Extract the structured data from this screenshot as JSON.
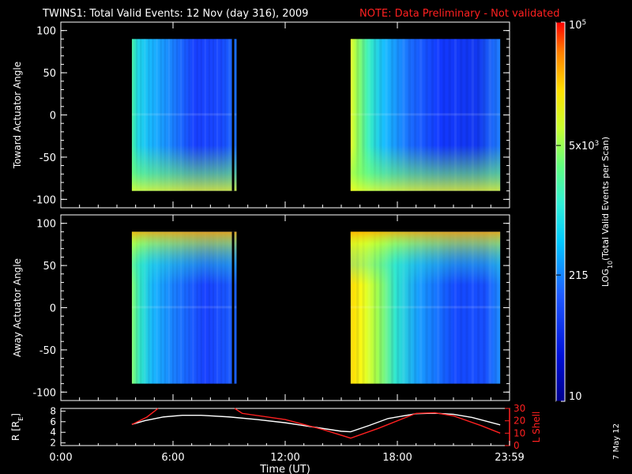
{
  "title": "TWINS1: Total Valid Events: 12 Nov (day 316), 2009",
  "note": "NOTE: Data Preliminary - Not validated",
  "colors": {
    "background": "#000000",
    "axes": "#ffffff",
    "note": "#ff2020",
    "lshell": "#ff2020",
    "radius": "#ffffff"
  },
  "chart_data": [
    {
      "type": "heatmap",
      "ylabel": "Toward Actuator Angle",
      "ylim": [
        -110,
        110
      ],
      "yticks": [
        100,
        50,
        0,
        -50,
        -100
      ],
      "xlim": [
        0,
        24
      ],
      "blocks": [
        {
          "t_start": 3.8,
          "t_end": 9.4,
          "angle_min": -90,
          "angle_max": 90
        },
        {
          "t_start": 15.5,
          "t_end": 23.5,
          "angle_min": -90,
          "angle_max": 90
        }
      ],
      "gaps": [
        {
          "t_start": 9.15,
          "t_end": 9.25
        }
      ]
    },
    {
      "type": "heatmap",
      "ylabel": "Away Actuator Angle",
      "ylim": [
        -110,
        110
      ],
      "yticks": [
        100,
        50,
        0,
        -50,
        -100
      ],
      "xlim": [
        0,
        24
      ],
      "blocks": [
        {
          "t_start": 3.8,
          "t_end": 9.4,
          "angle_min": -90,
          "angle_max": 90
        },
        {
          "t_start": 15.5,
          "t_end": 23.5,
          "angle_min": -90,
          "angle_max": 90
        }
      ],
      "gaps": [
        {
          "t_start": 9.15,
          "t_end": 9.25
        }
      ]
    },
    {
      "type": "line",
      "xlabel": "Time (UT)",
      "xticks": [
        "0:00",
        "6:00",
        "12:00",
        "18:00",
        "23:59"
      ],
      "xtick_values": [
        0,
        6,
        12,
        18,
        24
      ],
      "left_axis": {
        "label": "R [R",
        "label_sub": "E",
        "label_end": "]",
        "ylim": [
          1.5,
          8.5
        ],
        "ticks": [
          8,
          6,
          4,
          2
        ]
      },
      "right_axis": {
        "label": "L Shell",
        "ylim": [
          0,
          30
        ],
        "ticks": [
          30,
          20,
          10,
          0
        ],
        "tick_labels": [
          "30",
          "20",
          "10",
          "0"
        ]
      },
      "series": [
        {
          "axis": "left",
          "points": [
            [
              3.8,
              5.5
            ],
            [
              4.5,
              6.2
            ],
            [
              5.5,
              6.9
            ],
            [
              6.5,
              7.2
            ],
            [
              7.5,
              7.2
            ],
            [
              9,
              6.9
            ],
            [
              10.5,
              6.4
            ],
            [
              12,
              5.8
            ],
            [
              13.5,
              5.0
            ],
            [
              15,
              4.2
            ],
            [
              15.5,
              4.1
            ],
            [
              16.5,
              5.3
            ],
            [
              17.5,
              6.6
            ],
            [
              19,
              7.5
            ],
            [
              20,
              7.6
            ],
            [
              21,
              7.4
            ],
            [
              22,
              6.8
            ],
            [
              23.5,
              5.4
            ]
          ]
        },
        {
          "axis": "right",
          "segments": [
            [
              [
                3.8,
                17
              ],
              [
                4.6,
                23
              ],
              [
                5.2,
                30
              ]
            ],
            [
              [
                9.3,
                30
              ],
              [
                9.7,
                26
              ],
              [
                12,
                21
              ],
              [
                14,
                13
              ],
              [
                15.5,
                6
              ],
              [
                17,
                14
              ],
              [
                19,
                26
              ],
              [
                20,
                26.5
              ],
              [
                21,
                24
              ],
              [
                22.5,
                16
              ],
              [
                23.5,
                10
              ]
            ]
          ]
        }
      ]
    }
  ],
  "colorbar": {
    "label": "LOG",
    "label_sub": "10",
    "label_rest": "(Total Valid Events per Scan)",
    "scale": "log",
    "range": [
      10,
      100000
    ],
    "ticks": [
      {
        "value": 10,
        "text": "10",
        "sup": ""
      },
      {
        "value": 215,
        "text": "215",
        "sup": ""
      },
      {
        "value": 5000,
        "text": "5x10",
        "sup": "3"
      },
      {
        "value": 100000,
        "text": "10",
        "sup": "5"
      }
    ]
  },
  "date_stamp": "7 May 12"
}
